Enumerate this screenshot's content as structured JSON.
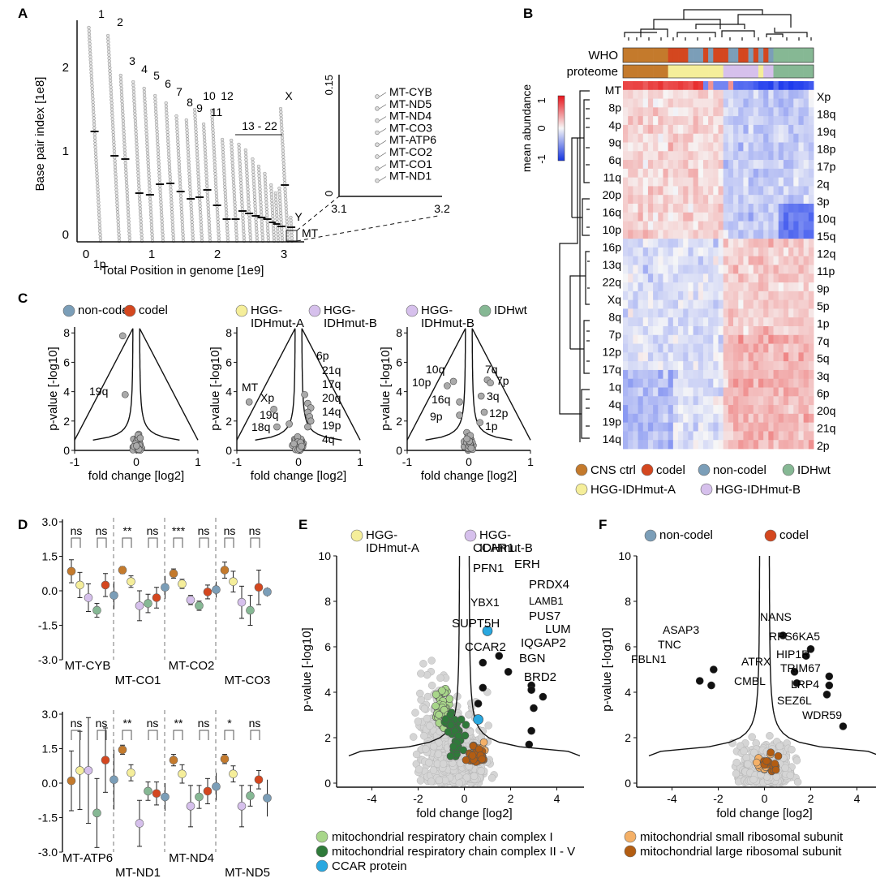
{
  "panels": {
    "A": {
      "letter": "A",
      "xlabel": "Total Position in genome [1e9]",
      "ylabel": "Base pair index [1e8]",
      "xticks": [
        "0",
        "1",
        "2",
        "3"
      ],
      "yticks": [
        "0",
        "1",
        "2"
      ],
      "chrom_labels": [
        "1",
        "2",
        "3",
        "4",
        "5",
        "6",
        "7",
        "8",
        "9",
        "10",
        "11",
        "12",
        "13 - 22",
        "X",
        "Y",
        "MT"
      ],
      "inset": {
        "yticks": [
          "0",
          "0.15"
        ],
        "xticks": [
          "3.1",
          "3.2"
        ],
        "genes": [
          "MT-CYB",
          "MT-ND5",
          "MT-ND4",
          "MT-CO3",
          "MT-ATP6",
          "MT-CO2",
          "MT-CO1",
          "MT-ND1"
        ]
      }
    },
    "B": {
      "letter": "B",
      "row_labels": [
        "WHO",
        "proteome"
      ],
      "colorbar_label": "mean abundance",
      "colorbar_ticks": [
        "1",
        "0",
        "-1"
      ],
      "left_arms": [
        "MT",
        "8p",
        "4p",
        "9q",
        "6q",
        "11q",
        "20p",
        "16q",
        "10p",
        "16p",
        "13q",
        "22q",
        "Xq",
        "8q",
        "7p",
        "12p",
        "17q",
        "1q",
        "4q",
        "19p",
        "14q"
      ],
      "right_arms": [
        "Xp",
        "18q",
        "19q",
        "18p",
        "17p",
        "2q",
        "3p",
        "10q",
        "15q",
        "12q",
        "11p",
        "9p",
        "5p",
        "1p",
        "7q",
        "5q",
        "3q",
        "6p",
        "20q",
        "21q",
        "2p"
      ],
      "legend": [
        "CNS ctrl",
        "codel",
        "non-codel",
        "IDHwt",
        "HGG-IDHmut-A",
        "HGG-IDHmut-B"
      ],
      "colors": {
        "CNS ctrl": "#c47a2c",
        "codel": "#d4471f",
        "non-codel": "#7b9eb8",
        "IDHwt": "#86b894",
        "HGG-IDHmut-A": "#f5ee9a",
        "HGG-IDHmut-B": "#d6c0ec"
      }
    },
    "C": {
      "letter": "C",
      "xlabel": "fold change [log2]",
      "ylabel": "p-value [-log10]",
      "xticks": [
        "-1",
        "0",
        "1"
      ],
      "yticks": [
        "0",
        "2",
        "4",
        "6",
        "8"
      ],
      "p1": {
        "legend": [
          "non-codel",
          "codel"
        ],
        "labels": [
          "1p",
          "19q"
        ]
      },
      "p2": {
        "legend": [
          "HGG-\nIDHmut-A",
          "HGG-\nIDHmut-B"
        ],
        "labels": [
          "MT",
          "Xp",
          "19q",
          "18q",
          "6p",
          "21q",
          "17q",
          "20q",
          "14q",
          "19p",
          "4q"
        ]
      },
      "p3": {
        "legend": [
          "HGG-\nIDHmut-B",
          "IDHwt"
        ],
        "labels": [
          "10q",
          "10p",
          "16q",
          "9p",
          "7q",
          "7p",
          "3q",
          "12p",
          "1p"
        ]
      }
    },
    "D": {
      "letter": "D",
      "yticks": [
        "3.0",
        "1.5",
        "0.0",
        "-1.5",
        "-3.0"
      ],
      "top_groups": [
        "MT-CYB",
        "MT-CO1",
        "MT-CO2",
        "MT-CO3"
      ],
      "bottom_groups": [
        "MT-ATP6",
        "MT-ND1",
        "MT-ND4",
        "MT-ND5"
      ],
      "top_sig": [
        "ns",
        "ns",
        "**",
        "ns",
        "***",
        "ns",
        "ns",
        "ns"
      ],
      "bottom_sig": [
        "ns",
        "ns",
        "**",
        "ns",
        "**",
        "ns",
        "*",
        "ns"
      ]
    },
    "E": {
      "letter": "E",
      "legend": [
        "HGG-\nIDHmut-A",
        "HGG-\nIDHmut-B"
      ],
      "xlabel": "fold change [log2]",
      "ylabel": "p-value [-log10]",
      "xticks": [
        "-4",
        "-2",
        "0",
        "2",
        "4"
      ],
      "yticks": [
        "0",
        "2",
        "4",
        "6",
        "8",
        "10"
      ],
      "proteins": [
        "CCAR1",
        "PFN1",
        "ERH",
        "PRDX4",
        "YBX1",
        "LAMB1",
        "PUS7",
        "SUPT5H",
        "LUM",
        "IQGAP2",
        "CCAR2",
        "BGN",
        "BRD2"
      ],
      "bottom_legend": [
        "mitochondrial respiratory chain complex I",
        "mitochondrial respiratory chain complex II - V",
        "CCAR protein"
      ]
    },
    "F": {
      "letter": "F",
      "legend": [
        "non-codel",
        "codel"
      ],
      "xlabel": "fold change [log2]",
      "ylabel": "p-value [-log10]",
      "xticks": [
        "-4",
        "-2",
        "0",
        "2",
        "4"
      ],
      "yticks": [
        "0",
        "2",
        "4",
        "6",
        "8",
        "10"
      ],
      "proteins": [
        "NANS",
        "RPS6KA5",
        "ASAP3",
        "HIP1R",
        "TNC",
        "ATRX",
        "TRIM67",
        "FBLN1",
        "CMBL",
        "LRP4",
        "SEZ6L",
        "WDR59"
      ],
      "bottom_legend": [
        "mitochondrial small ribosomal subunit",
        "mitochondrial large ribosomal subunit"
      ]
    }
  }
}
